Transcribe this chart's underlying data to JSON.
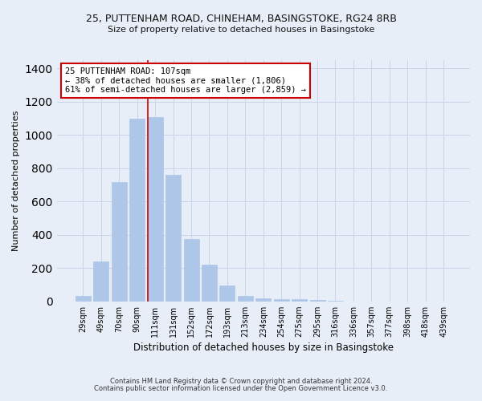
{
  "title": "25, PUTTENHAM ROAD, CHINEHAM, BASINGSTOKE, RG24 8RB",
  "subtitle": "Size of property relative to detached houses in Basingstoke",
  "xlabel": "Distribution of detached houses by size in Basingstoke",
  "ylabel": "Number of detached properties",
  "bar_color": "#aec6e8",
  "bar_edge_color": "#aec6e8",
  "background_color": "#e8eef8",
  "categories": [
    "29sqm",
    "49sqm",
    "70sqm",
    "90sqm",
    "111sqm",
    "131sqm",
    "152sqm",
    "172sqm",
    "193sqm",
    "213sqm",
    "234sqm",
    "254sqm",
    "275sqm",
    "295sqm",
    "316sqm",
    "336sqm",
    "357sqm",
    "377sqm",
    "398sqm",
    "418sqm",
    "439sqm"
  ],
  "values": [
    30,
    240,
    715,
    1100,
    1110,
    760,
    375,
    220,
    95,
    30,
    20,
    15,
    12,
    8,
    5,
    0,
    0,
    0,
    0,
    0,
    0
  ],
  "property_line_x": 3.575,
  "property_label": "25 PUTTENHAM ROAD: 107sqm",
  "annotation_line1": "← 38% of detached houses are smaller (1,806)",
  "annotation_line2": "61% of semi-detached houses are larger (2,859) →",
  "vline_color": "#cc0000",
  "annotation_box_facecolor": "#ffffff",
  "annotation_box_edgecolor": "#cc0000",
  "ylim": [
    0,
    1450
  ],
  "yticks": [
    0,
    200,
    400,
    600,
    800,
    1000,
    1200,
    1400
  ],
  "grid_color": "#c8d4e8",
  "footnote1": "Contains HM Land Registry data © Crown copyright and database right 2024.",
  "footnote2": "Contains public sector information licensed under the Open Government Licence v3.0."
}
